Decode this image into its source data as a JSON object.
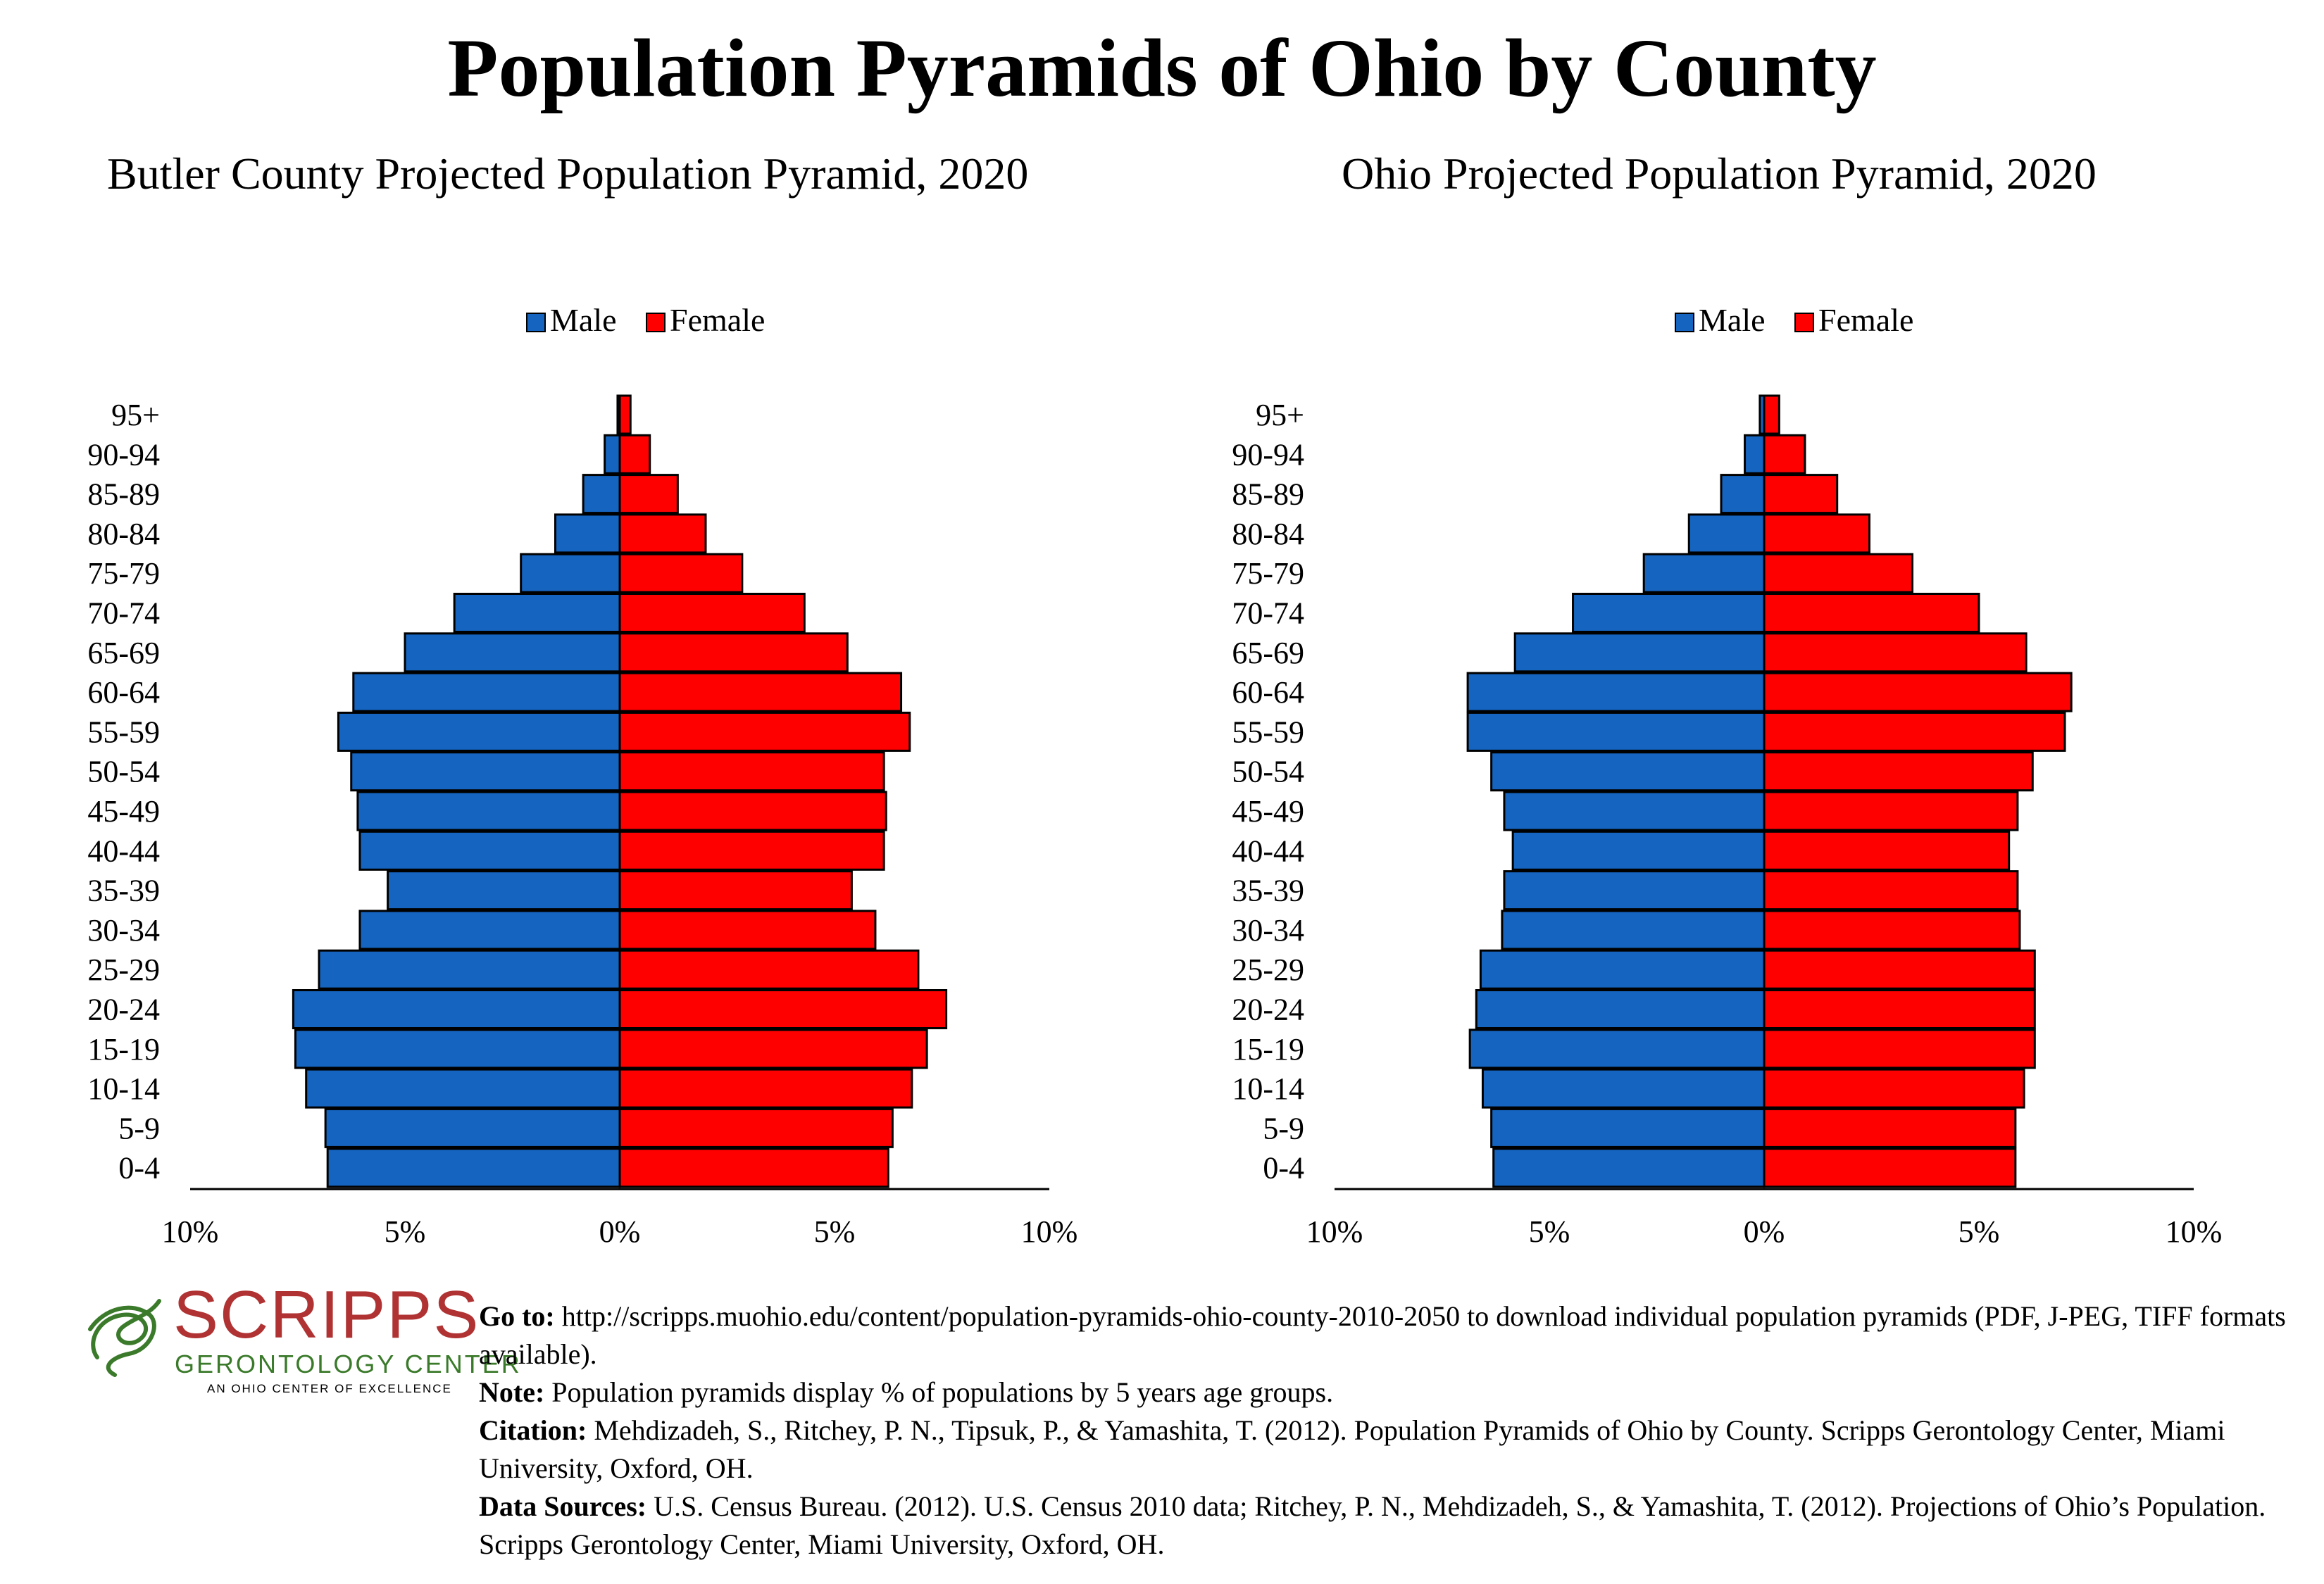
{
  "title": "Population Pyramids of Ohio by County",
  "colors": {
    "male": "#1565c0",
    "female": "#ff0000",
    "outline": "#000000",
    "logo_red": "#b03232",
    "logo_green": "#3a7a2a"
  },
  "legend": {
    "male": "Male",
    "female": "Female"
  },
  "chart_data": [
    {
      "type": "bar",
      "orientation": "horizontal-pyramid",
      "title": "Butler County Projected Population Pyramid, 2020",
      "categories": [
        "95+",
        "90-94",
        "85-89",
        "80-84",
        "75-79",
        "70-74",
        "65-69",
        "60-64",
        "55-59",
        "50-54",
        "45-49",
        "40-44",
        "35-39",
        "30-34",
        "25-29",
        "20-24",
        "15-19",
        "10-14",
        "5-9",
        "0-4"
      ],
      "series": [
        {
          "name": "Male",
          "values": [
            0.05,
            0.35,
            0.85,
            1.5,
            2.3,
            3.85,
            5.0,
            6.2,
            6.55,
            6.25,
            6.1,
            6.05,
            5.4,
            6.05,
            7.0,
            7.6,
            7.55,
            7.3,
            6.85,
            6.8
          ]
        },
        {
          "name": "Female",
          "values": [
            0.25,
            0.7,
            1.35,
            2.0,
            2.85,
            4.3,
            5.3,
            6.55,
            6.75,
            6.15,
            6.2,
            6.15,
            5.4,
            5.95,
            6.95,
            7.6,
            7.15,
            6.8,
            6.35,
            6.25
          ]
        }
      ],
      "xticks": [
        "10%",
        "5%",
        "0%",
        "5%",
        "10%"
      ],
      "xlim": [
        -10,
        10
      ],
      "legend_position": "top-center",
      "grid": false
    },
    {
      "type": "bar",
      "orientation": "horizontal-pyramid",
      "title": "Ohio Projected Population Pyramid, 2020",
      "categories": [
        "95+",
        "90-94",
        "85-89",
        "80-84",
        "75-79",
        "70-74",
        "65-69",
        "60-64",
        "55-59",
        "50-54",
        "45-49",
        "40-44",
        "35-39",
        "30-34",
        "25-29",
        "20-24",
        "15-19",
        "10-14",
        "5-9",
        "0-4"
      ],
      "series": [
        {
          "name": "Male",
          "values": [
            0.1,
            0.45,
            1.0,
            1.75,
            2.8,
            4.45,
            5.8,
            6.9,
            6.9,
            6.35,
            6.05,
            5.85,
            6.05,
            6.1,
            6.6,
            6.7,
            6.85,
            6.55,
            6.35,
            6.3
          ]
        },
        {
          "name": "Female",
          "values": [
            0.35,
            0.95,
            1.7,
            2.45,
            3.45,
            5.0,
            6.1,
            7.15,
            7.0,
            6.25,
            5.9,
            5.7,
            5.9,
            5.95,
            6.3,
            6.3,
            6.3,
            6.05,
            5.85,
            5.85
          ]
        }
      ],
      "xticks": [
        "10%",
        "5%",
        "0%",
        "5%",
        "10%"
      ],
      "xlim": [
        -10,
        10
      ],
      "legend_position": "top-center",
      "grid": false
    }
  ],
  "logo": {
    "name": "SCRIPPS",
    "subtitle": "GERONTOLOGY CENTER",
    "tagline": "AN OHIO CENTER OF EXCELLENCE"
  },
  "notes": {
    "goto_label": "Go to:",
    "goto_text": " http://scripps.muohio.edu/content/population-pyramids-ohio-county-2010-2050 to download individual population pyramids (PDF, J-PEG, TIFF formats available).",
    "note_label": "Note:",
    "note_text": " Population pyramids display % of populations by 5 years age groups.",
    "citation_label": "Citation:",
    "citation_text": " Mehdizadeh, S., Ritchey, P. N., Tipsuk, P., & Yamashita, T. (2012). Population Pyramids of Ohio by County. Scripps Gerontology Center, Miami University, Oxford, OH.",
    "sources_label": "Data Sources:",
    "sources_text": " U.S. Census Bureau. (2012). U.S. Census 2010 data; Ritchey, P. N., Mehdizadeh, S., & Yamashita, T. (2012). Projections of Ohio’s Population. Scripps Gerontology Center, Miami University, Oxford, OH."
  }
}
